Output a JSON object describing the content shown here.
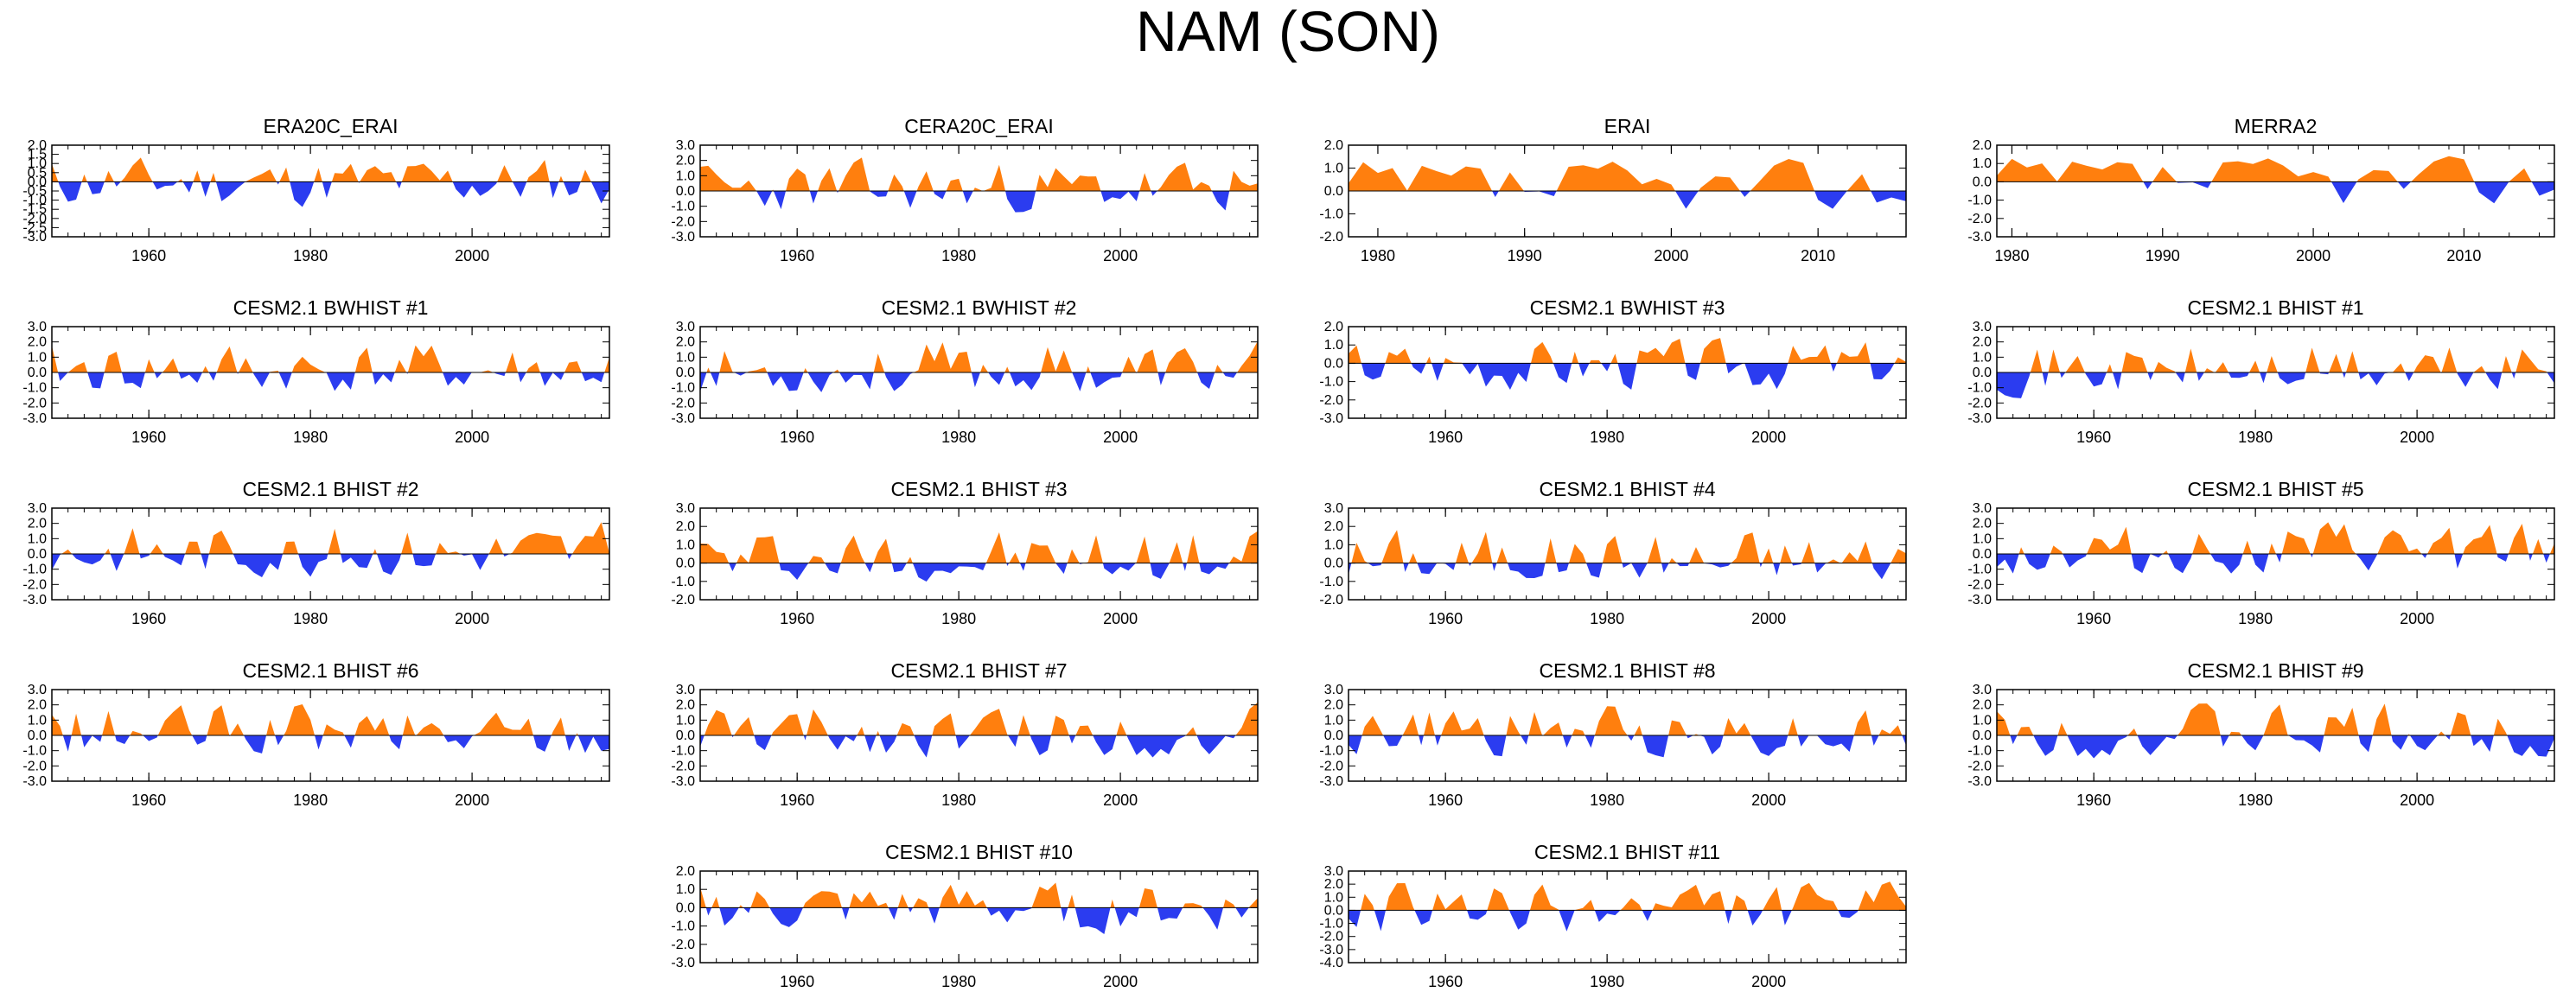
{
  "title": "NAM (SON)",
  "colors": {
    "positive": "#ff7f0e",
    "negative": "#2b3cf0",
    "axis": "#000000"
  },
  "chart_data": [
    {
      "type": "area",
      "title": "ERA20C_ERAI",
      "xlim": [
        1948,
        2017
      ],
      "ylim": [
        -3.0,
        2.0
      ],
      "yticks": [
        "2.0",
        "1.5",
        "1.0",
        "0.5",
        "0.0",
        "-0.5",
        "-1.0",
        "-1.5",
        "-2.0",
        "-2.5",
        "-3.0"
      ],
      "xticks": [
        "1960",
        "1980",
        "2000"
      ],
      "seed": 11
    },
    {
      "type": "area",
      "title": "CERA20C_ERAI",
      "xlim": [
        1948,
        2017
      ],
      "ylim": [
        -3.0,
        3.0
      ],
      "yticks": [
        "3.0",
        "2.0",
        "1.0",
        "0.0",
        "-1.0",
        "-2.0",
        "-3.0"
      ],
      "xticks": [
        "1960",
        "1980",
        "2000"
      ],
      "seed": 23
    },
    {
      "type": "area",
      "title": "ERAI",
      "xlim": [
        1978,
        2016
      ],
      "ylim": [
        -2.0,
        2.0
      ],
      "yticks": [
        "2.0",
        "1.0",
        "0.0",
        "-1.0",
        "-2.0"
      ],
      "xticks": [
        "1980",
        "1990",
        "2000",
        "2010"
      ],
      "seed": 37
    },
    {
      "type": "area",
      "title": "MERRA2",
      "xlim": [
        1979,
        2016
      ],
      "ylim": [
        -3.0,
        2.0
      ],
      "yticks": [
        "2.0",
        "1.0",
        "0.0",
        "-1.0",
        "-2.0",
        "-3.0"
      ],
      "xticks": [
        "1980",
        "1990",
        "2000",
        "2010"
      ],
      "seed": 37
    },
    {
      "type": "area",
      "title": "CESM2.1 BWHIST #1",
      "xlim": [
        1948,
        2017
      ],
      "ylim": [
        -3.0,
        3.0
      ],
      "yticks": [
        "3.0",
        "2.0",
        "1.0",
        "0.0",
        "-1.0",
        "-2.0",
        "-3.0"
      ],
      "xticks": [
        "1960",
        "1980",
        "2000"
      ],
      "seed": 41
    },
    {
      "type": "area",
      "title": "CESM2.1 BWHIST #2",
      "xlim": [
        1948,
        2017
      ],
      "ylim": [
        -3.0,
        3.0
      ],
      "yticks": [
        "3.0",
        "2.0",
        "1.0",
        "0.0",
        "-1.0",
        "-2.0",
        "-3.0"
      ],
      "xticks": [
        "1960",
        "1980",
        "2000"
      ],
      "seed": 53
    },
    {
      "type": "area",
      "title": "CESM2.1 BWHIST #3",
      "xlim": [
        1948,
        2017
      ],
      "ylim": [
        -3.0,
        2.0
      ],
      "yticks": [
        "2.0",
        "1.0",
        "0.0",
        "-1.0",
        "-2.0",
        "-3.0"
      ],
      "xticks": [
        "1960",
        "1980",
        "2000"
      ],
      "seed": 67
    },
    {
      "type": "area",
      "title": "CESM2.1 BHIST #1",
      "xlim": [
        1948,
        2017
      ],
      "ylim": [
        -3.0,
        3.0
      ],
      "yticks": [
        "3.0",
        "2.0",
        "1.0",
        "0.0",
        "-1.0",
        "-2.0",
        "-3.0"
      ],
      "xticks": [
        "1960",
        "1980",
        "2000"
      ],
      "seed": 71
    },
    {
      "type": "area",
      "title": "CESM2.1 BHIST #2",
      "xlim": [
        1948,
        2017
      ],
      "ylim": [
        -3.0,
        3.0
      ],
      "yticks": [
        "3.0",
        "2.0",
        "1.0",
        "0.0",
        "-1.0",
        "-2.0",
        "-3.0"
      ],
      "xticks": [
        "1960",
        "1980",
        "2000"
      ],
      "seed": 83
    },
    {
      "type": "area",
      "title": "CESM2.1 BHIST #3",
      "xlim": [
        1948,
        2017
      ],
      "ylim": [
        -2.0,
        3.0
      ],
      "yticks": [
        "3.0",
        "2.0",
        "1.0",
        "0.0",
        "-1.0",
        "-2.0"
      ],
      "xticks": [
        "1960",
        "1980",
        "2000"
      ],
      "seed": 97
    },
    {
      "type": "area",
      "title": "CESM2.1 BHIST #4",
      "xlim": [
        1948,
        2017
      ],
      "ylim": [
        -2.0,
        3.0
      ],
      "yticks": [
        "3.0",
        "2.0",
        "1.0",
        "0.0",
        "-1.0",
        "-2.0"
      ],
      "xticks": [
        "1960",
        "1980",
        "2000"
      ],
      "seed": 101
    },
    {
      "type": "area",
      "title": "CESM2.1 BHIST #5",
      "xlim": [
        1948,
        2017
      ],
      "ylim": [
        -3.0,
        3.0
      ],
      "yticks": [
        "3.0",
        "2.0",
        "1.0",
        "0.0",
        "-1.0",
        "-2.0",
        "-3.0"
      ],
      "xticks": [
        "1960",
        "1980",
        "2000"
      ],
      "seed": 113
    },
    {
      "type": "area",
      "title": "CESM2.1 BHIST #6",
      "xlim": [
        1948,
        2017
      ],
      "ylim": [
        -3.0,
        3.0
      ],
      "yticks": [
        "3.0",
        "2.0",
        "1.0",
        "0.0",
        "-1.0",
        "-2.0",
        "-3.0"
      ],
      "xticks": [
        "1960",
        "1980",
        "2000"
      ],
      "seed": 127
    },
    {
      "type": "area",
      "title": "CESM2.1 BHIST #7",
      "xlim": [
        1948,
        2017
      ],
      "ylim": [
        -3.0,
        3.0
      ],
      "yticks": [
        "3.0",
        "2.0",
        "1.0",
        "0.0",
        "-1.0",
        "-2.0",
        "-3.0"
      ],
      "xticks": [
        "1960",
        "1980",
        "2000"
      ],
      "seed": 131
    },
    {
      "type": "area",
      "title": "CESM2.1 BHIST #8",
      "xlim": [
        1948,
        2017
      ],
      "ylim": [
        -3.0,
        3.0
      ],
      "yticks": [
        "3.0",
        "2.0",
        "1.0",
        "0.0",
        "-1.0",
        "-2.0",
        "-3.0"
      ],
      "xticks": [
        "1960",
        "1980",
        "2000"
      ],
      "seed": 149
    },
    {
      "type": "area",
      "title": "CESM2.1 BHIST #9",
      "xlim": [
        1948,
        2017
      ],
      "ylim": [
        -3.0,
        3.0
      ],
      "yticks": [
        "3.0",
        "2.0",
        "1.0",
        "0.0",
        "-1.0",
        "-2.0",
        "-3.0"
      ],
      "xticks": [
        "1960",
        "1980",
        "2000"
      ],
      "seed": 151
    },
    {
      "type": "area",
      "title": "CESM2.1 BHIST #10",
      "xlim": [
        1948,
        2017
      ],
      "ylim": [
        -3.0,
        2.0
      ],
      "yticks": [
        "2.0",
        "1.0",
        "0.0",
        "-1.0",
        "-2.0",
        "-3.0"
      ],
      "xticks": [
        "1960",
        "1980",
        "2000"
      ],
      "seed": 163
    },
    {
      "type": "area",
      "title": "CESM2.1 BHIST #11",
      "xlim": [
        1948,
        2017
      ],
      "ylim": [
        -4.0,
        3.0
      ],
      "yticks": [
        "3.0",
        "2.0",
        "1.0",
        "0.0",
        "-1.0",
        "-2.0",
        "-3.0",
        "-4.0"
      ],
      "xticks": [
        "1960",
        "1980",
        "2000"
      ],
      "seed": 173
    }
  ]
}
